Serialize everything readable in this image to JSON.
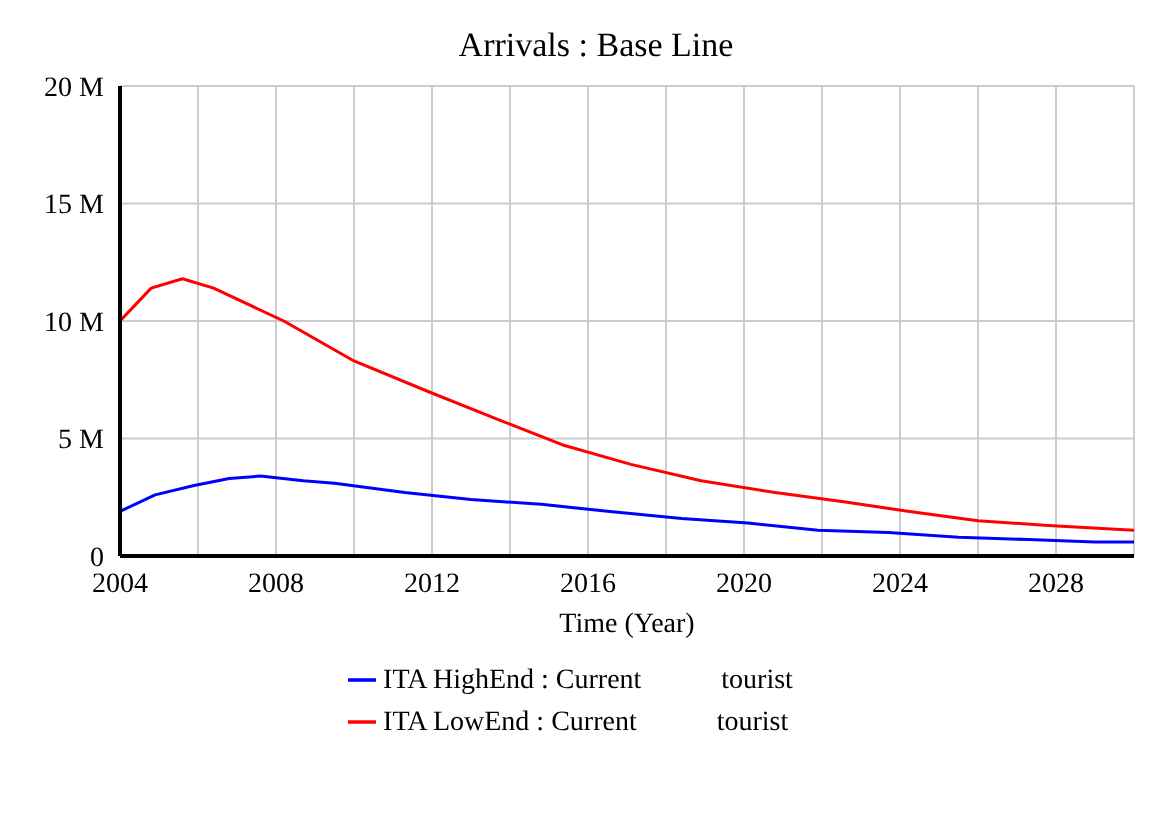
{
  "chart_data": {
    "type": "line",
    "title": "Arrivals : Base Line",
    "xlabel": "Time (Year)",
    "xlim": [
      2004,
      2030
    ],
    "xticks": [
      2004,
      2008,
      2012,
      2016,
      2020,
      2024,
      2028
    ],
    "ylim": [
      0,
      20
    ],
    "yticks": [
      {
        "value": 0,
        "label": "0"
      },
      {
        "value": 5,
        "label": "5 M"
      },
      {
        "value": 10,
        "label": "10 M"
      },
      {
        "value": 15,
        "label": "15 M"
      },
      {
        "value": 20,
        "label": "20 M"
      }
    ],
    "grid": true,
    "legend": "bottom",
    "annotations": [
      "tourist",
      "tourist"
    ],
    "series": [
      {
        "name": "ITA HighEnd : Current",
        "color": "#0000ff",
        "x": [
          2004,
          2004.9,
          2005.9,
          2006.8,
          2007.6,
          2008.7,
          2009.5,
          2011.3,
          2013,
          2014.8,
          2016.5,
          2018.4,
          2020.1,
          2021.9,
          2023.7,
          2025.5,
          2027.3,
          2029,
          2030
        ],
        "values": [
          1.9,
          2.6,
          3.0,
          3.3,
          3.4,
          3.2,
          3.1,
          2.7,
          2.4,
          2.2,
          1.9,
          1.6,
          1.4,
          1.1,
          1.0,
          0.8,
          0.7,
          0.6,
          0.6
        ]
      },
      {
        "name": "ITA LowEnd : Current",
        "color": "#ff0000",
        "x": [
          2004,
          2004.8,
          2005.6,
          2006.4,
          2008.2,
          2010,
          2011.9,
          2013.7,
          2015.4,
          2017.1,
          2018.9,
          2020.8,
          2022.6,
          2024.2,
          2026,
          2027.8,
          2030
        ],
        "values": [
          10.0,
          11.4,
          11.8,
          11.4,
          10.0,
          8.3,
          7.0,
          5.8,
          4.7,
          3.9,
          3.2,
          2.7,
          2.3,
          1.9,
          1.5,
          1.3,
          1.1
        ]
      }
    ]
  }
}
